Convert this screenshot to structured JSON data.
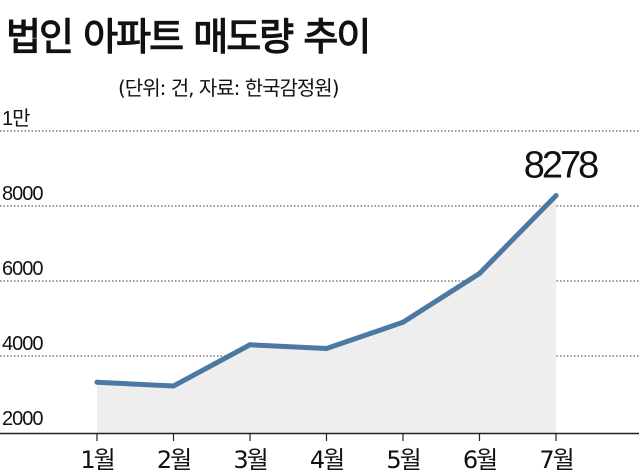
{
  "chart_data": {
    "type": "area",
    "title": "법인 아파트 매도량 추이",
    "subtitle": "(단위: 건, 자료: 한국감정원)",
    "categories": [
      "1월",
      "2월",
      "3월",
      "4월",
      "5월",
      "6월",
      "7월"
    ],
    "series": [
      {
        "values": [
          3300,
          3200,
          4300,
          4200,
          4900,
          6200,
          8278
        ]
      }
    ],
    "y_ticks": [
      "2000",
      "4000",
      "6000",
      "8000",
      "1만"
    ],
    "y_tick_values": [
      2000,
      4000,
      6000,
      8000,
      10000
    ],
    "ylim": [
      1900,
      10000
    ],
    "data_labels": [
      {
        "index": 6,
        "text": "8278"
      }
    ],
    "grid": "horizontal-dotted",
    "colors": {
      "line": "#4c79a3",
      "area": "#eeeeef",
      "grid": "#333333"
    }
  }
}
